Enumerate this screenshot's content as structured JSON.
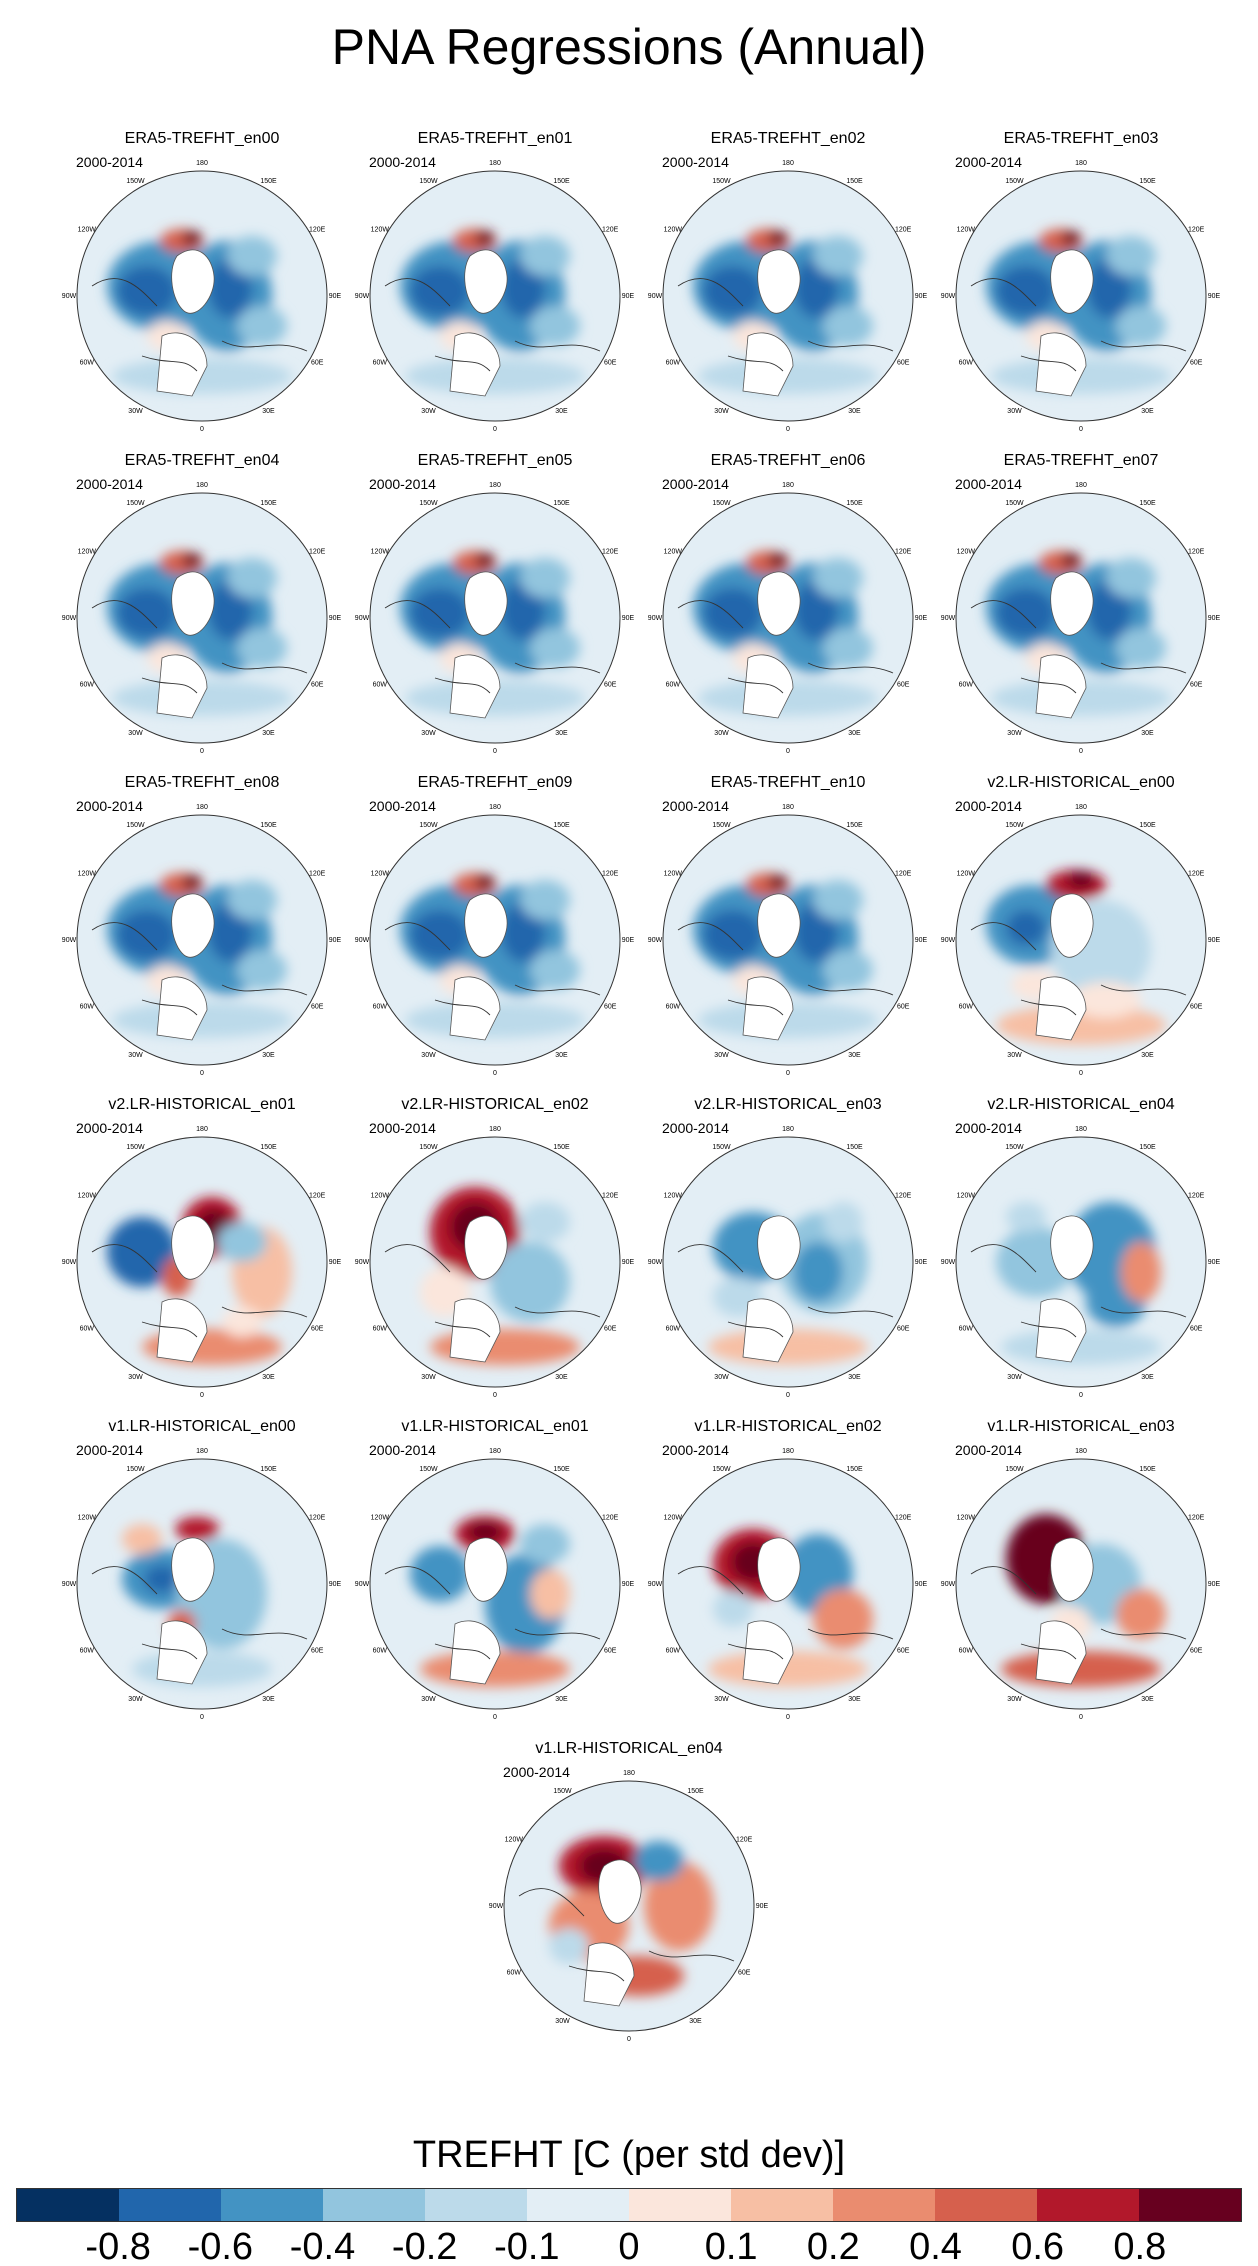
{
  "title": "PNA Regressions (Annual)",
  "period_label": "2000-2014",
  "longitude_labels": [
    "180",
    "150E",
    "120E",
    "90E",
    "60E",
    "30E",
    "0",
    "30W",
    "60W",
    "90W",
    "120W",
    "150W"
  ],
  "panels": [
    {
      "title": "ERA5-TREFHT_en00",
      "pattern": "era5"
    },
    {
      "title": "ERA5-TREFHT_en01",
      "pattern": "era5"
    },
    {
      "title": "ERA5-TREFHT_en02",
      "pattern": "era5"
    },
    {
      "title": "ERA5-TREFHT_en03",
      "pattern": "era5"
    },
    {
      "title": "ERA5-TREFHT_en04",
      "pattern": "era5"
    },
    {
      "title": "ERA5-TREFHT_en05",
      "pattern": "era5"
    },
    {
      "title": "ERA5-TREFHT_en06",
      "pattern": "era5"
    },
    {
      "title": "ERA5-TREFHT_en07",
      "pattern": "era5"
    },
    {
      "title": "ERA5-TREFHT_en08",
      "pattern": "era5"
    },
    {
      "title": "ERA5-TREFHT_en09",
      "pattern": "era5"
    },
    {
      "title": "ERA5-TREFHT_en10",
      "pattern": "era5"
    },
    {
      "title": "v2.LR-HISTORICAL_en00",
      "pattern": "v2a"
    },
    {
      "title": "v2.LR-HISTORICAL_en01",
      "pattern": "v2b"
    },
    {
      "title": "v2.LR-HISTORICAL_en02",
      "pattern": "v2c"
    },
    {
      "title": "v2.LR-HISTORICAL_en03",
      "pattern": "v2d"
    },
    {
      "title": "v2.LR-HISTORICAL_en04",
      "pattern": "v2e"
    },
    {
      "title": "v1.LR-HISTORICAL_en00",
      "pattern": "v1a"
    },
    {
      "title": "v1.LR-HISTORICAL_en01",
      "pattern": "v1b"
    },
    {
      "title": "v1.LR-HISTORICAL_en02",
      "pattern": "v1c"
    },
    {
      "title": "v1.LR-HISTORICAL_en03",
      "pattern": "v1d"
    },
    {
      "title": "v1.LR-HISTORICAL_en04",
      "pattern": "v1e"
    }
  ],
  "colorbar": {
    "title": "TREFHT [C (per std dev)]",
    "colors": [
      "#053061",
      "#2166ac",
      "#4393c3",
      "#92c5de",
      "#bcdaea",
      "#e3eef5",
      "#fbe6dc",
      "#f7bfa4",
      "#ea8c6f",
      "#d6604d",
      "#b2182b",
      "#67001f"
    ],
    "tick_labels": [
      "-0.8",
      "-0.6",
      "-0.4",
      "-0.2",
      "-0.1",
      "0",
      "0.1",
      "0.2",
      "0.4",
      "0.6",
      "0.8"
    ]
  }
}
